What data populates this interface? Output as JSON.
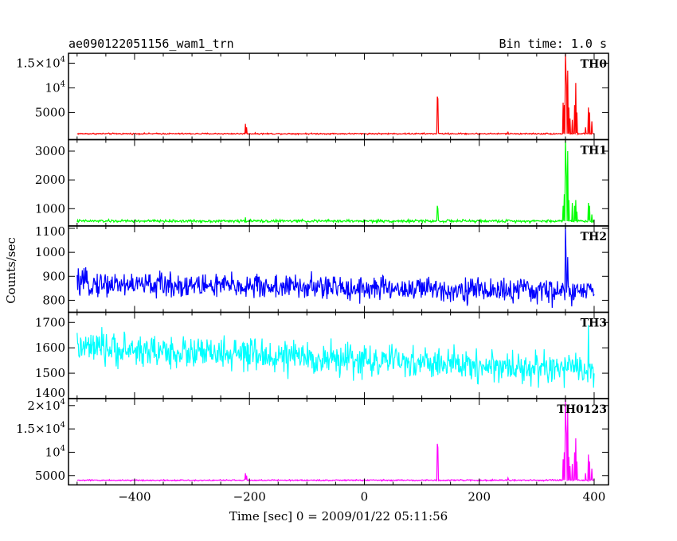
{
  "header": {
    "title": "ae090122051156_wam1_trn",
    "bin_time": "Bin time: 1.0 s"
  },
  "chart_data": {
    "type": "line",
    "title": "ae090122051156_wam1_trn",
    "xlabel": "Time [sec] 0 = 2009/01/22 05:11:56",
    "ylabel": "Counts/sec",
    "xlim": [
      -515,
      425
    ],
    "xticks": [
      -400,
      -200,
      0,
      200,
      400
    ],
    "xtick_labels": [
      "−400",
      "−200",
      "0",
      "200",
      "400"
    ],
    "grid": false,
    "panels": [
      {
        "name": "TH0",
        "color": "#ff0000",
        "ylim": [
          -500,
          17000
        ],
        "yticks": [
          {
            "value": 5000,
            "base": "5000",
            "exp": ""
          },
          {
            "value": 10000,
            "base": "10",
            "exp": "4"
          },
          {
            "value": 15000,
            "base": "1.5×10",
            "exp": "4"
          }
        ],
        "baseline": 700,
        "noise": 120,
        "spikes": [
          {
            "t": -207,
            "v": 2700
          },
          {
            "t": -205,
            "v": 2000
          },
          {
            "t": 127,
            "v": 8200
          },
          {
            "t": 128,
            "v": 7800
          },
          {
            "t": 250,
            "v": 1100
          },
          {
            "t": 346,
            "v": 7000
          },
          {
            "t": 348,
            "v": 6500
          },
          {
            "t": 350,
            "v": 17000
          },
          {
            "t": 351,
            "v": 13000
          },
          {
            "t": 352,
            "v": 10500
          },
          {
            "t": 354,
            "v": 13500
          },
          {
            "t": 356,
            "v": 6000
          },
          {
            "t": 358,
            "v": 3800
          },
          {
            "t": 362,
            "v": 3500
          },
          {
            "t": 366,
            "v": 6500
          },
          {
            "t": 368,
            "v": 11000
          },
          {
            "t": 370,
            "v": 5000
          },
          {
            "t": 385,
            "v": 2000
          },
          {
            "t": 390,
            "v": 6000
          },
          {
            "t": 392,
            "v": 5000
          },
          {
            "t": 396,
            "v": 3200
          }
        ]
      },
      {
        "name": "TH1",
        "color": "#00ff00",
        "ylim": [
          400,
          3400
        ],
        "yticks": [
          {
            "value": 1000,
            "base": "1000",
            "exp": ""
          },
          {
            "value": 2000,
            "base": "2000",
            "exp": ""
          },
          {
            "value": 3000,
            "base": "3000",
            "exp": ""
          }
        ],
        "baseline": 570,
        "noise": 40,
        "spikes": [
          {
            "t": -207,
            "v": 700
          },
          {
            "t": 127,
            "v": 1100
          },
          {
            "t": 128,
            "v": 1000
          },
          {
            "t": 346,
            "v": 1100
          },
          {
            "t": 348,
            "v": 1500
          },
          {
            "t": 350,
            "v": 3400
          },
          {
            "t": 351,
            "v": 2600
          },
          {
            "t": 352,
            "v": 2100
          },
          {
            "t": 354,
            "v": 3000
          },
          {
            "t": 356,
            "v": 1300
          },
          {
            "t": 362,
            "v": 1200
          },
          {
            "t": 366,
            "v": 1100
          },
          {
            "t": 368,
            "v": 1300
          },
          {
            "t": 370,
            "v": 900
          },
          {
            "t": 390,
            "v": 1200
          },
          {
            "t": 392,
            "v": 1100
          },
          {
            "t": 396,
            "v": 800
          }
        ]
      },
      {
        "name": "TH2",
        "color": "#0000ff",
        "ylim": [
          750,
          1110
        ],
        "yticks": [
          {
            "value": 800,
            "base": "800",
            "exp": ""
          },
          {
            "value": 900,
            "base": "900",
            "exp": ""
          },
          {
            "value": 1000,
            "base": "1000",
            "exp": ""
          },
          {
            "value": 1100,
            "base": "1100",
            "exp": ""
          }
        ],
        "baseline": 870,
        "trend_end": 835,
        "noise": 45,
        "spikes": [
          {
            "t": 350,
            "v": 1110
          },
          {
            "t": 351,
            "v": 1000
          },
          {
            "t": 354,
            "v": 980
          }
        ]
      },
      {
        "name": "TH3",
        "color": "#00ffff",
        "ylim": [
          1400,
          1740
        ],
        "yticks": [
          {
            "value": 1400,
            "base": "1400",
            "exp": ""
          },
          {
            "value": 1500,
            "base": "1500",
            "exp": ""
          },
          {
            "value": 1600,
            "base": "1600",
            "exp": ""
          },
          {
            "value": 1700,
            "base": "1700",
            "exp": ""
          }
        ],
        "baseline": 1600,
        "trend_end": 1510,
        "noise": 55,
        "spikes": [
          {
            "t": 390,
            "v": 1690
          }
        ]
      },
      {
        "name": "TH0123",
        "color": "#ff00ff",
        "ylim": [
          3000,
          21500
        ],
        "yticks": [
          {
            "value": 5000,
            "base": "5000",
            "exp": ""
          },
          {
            "value": 10000,
            "base": "10",
            "exp": "4"
          },
          {
            "value": 15000,
            "base": "1.5×10",
            "exp": "4"
          },
          {
            "value": 20000,
            "base": "2×10",
            "exp": "4"
          }
        ],
        "baseline": 4000,
        "noise": 120,
        "spikes": [
          {
            "t": -207,
            "v": 5500
          },
          {
            "t": -205,
            "v": 5000
          },
          {
            "t": 127,
            "v": 11800
          },
          {
            "t": 128,
            "v": 11000
          },
          {
            "t": 250,
            "v": 4500
          },
          {
            "t": 346,
            "v": 8500
          },
          {
            "t": 348,
            "v": 10000
          },
          {
            "t": 350,
            "v": 21500
          },
          {
            "t": 351,
            "v": 16000
          },
          {
            "t": 352,
            "v": 14000
          },
          {
            "t": 354,
            "v": 19000
          },
          {
            "t": 356,
            "v": 9000
          },
          {
            "t": 358,
            "v": 7000
          },
          {
            "t": 362,
            "v": 7500
          },
          {
            "t": 366,
            "v": 10000
          },
          {
            "t": 368,
            "v": 13000
          },
          {
            "t": 370,
            "v": 8000
          },
          {
            "t": 385,
            "v": 5500
          },
          {
            "t": 390,
            "v": 9500
          },
          {
            "t": 392,
            "v": 8000
          },
          {
            "t": 396,
            "v": 6500
          }
        ]
      }
    ]
  }
}
